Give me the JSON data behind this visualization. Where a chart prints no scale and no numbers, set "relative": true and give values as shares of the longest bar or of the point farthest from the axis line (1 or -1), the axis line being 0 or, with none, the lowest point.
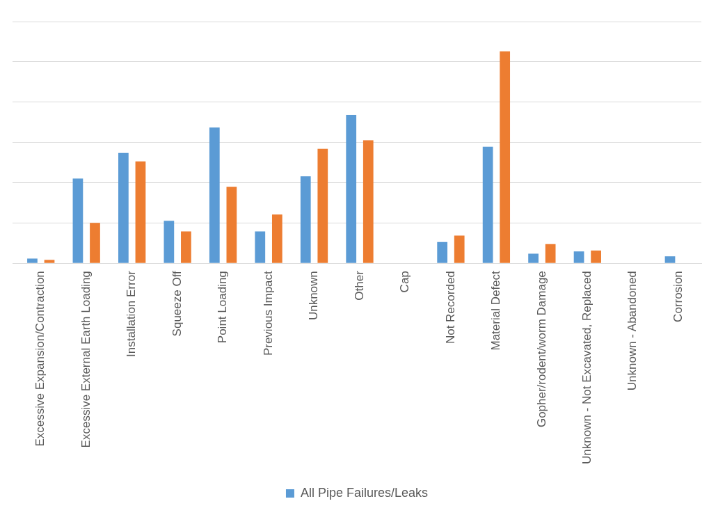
{
  "chart_data": {
    "type": "bar",
    "relative": true,
    "grid": "y",
    "legend": "bottom",
    "categories": [
      "Excessive Expansion/Contraction",
      "Excessive External Earth Loading",
      "Installation Error",
      "Squeeze Off",
      "Point Loading",
      "Previous Impact",
      "Unknown",
      "Other",
      "Cap",
      "Not Recorded",
      "Material Defect",
      "Gopher/rodent/worm Damage",
      "Unknown - Not Excavated, Replaced",
      "Unknown - Abandoned",
      "Corrosion"
    ],
    "series": [
      {
        "name": "All Pipe Failures/Leaks",
        "color": "#5b9bd5",
        "values": [
          0.022,
          0.4,
          0.52,
          0.2,
          0.64,
          0.15,
          0.41,
          0.7,
          0,
          0.1,
          0.55,
          0.045,
          0.056,
          0,
          0.033
        ]
      },
      {
        "color": "#ed7d31",
        "values": [
          0.015,
          0.19,
          0.48,
          0.15,
          0.36,
          0.23,
          0.54,
          0.58,
          0,
          0.13,
          1,
          0.09,
          0.06,
          0,
          0
        ]
      }
    ]
  }
}
